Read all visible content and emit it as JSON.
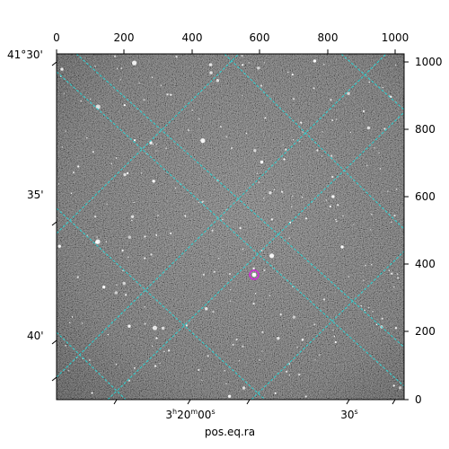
{
  "image": {
    "description_color_map": "grayscale",
    "grid_color": "#2ad4d4",
    "marker_color": "#d22cd8",
    "frame_color": "#000000"
  },
  "axes": {
    "xlabel": "pos.eq.ra",
    "pixel_x_ticks": [
      "0",
      "200",
      "400",
      "600",
      "800",
      "1000"
    ],
    "pixel_y_ticks": [
      "0",
      "200",
      "400",
      "600",
      "800",
      "1000"
    ],
    "dec_ticks": [
      "41°30'",
      "35'",
      "40'"
    ],
    "ra_ticks": [
      {
        "h": "3",
        "m": "20",
        "s": "00"
      },
      {
        "s": "30"
      }
    ]
  }
}
